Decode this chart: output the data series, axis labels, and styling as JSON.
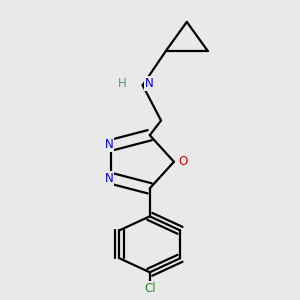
{
  "background_color": "#e9e9e9",
  "atom_colors": {
    "N": "#0000cc",
    "O": "#cc0000",
    "Cl": "#228B22",
    "C": "#000000",
    "H": "#4a9a8a"
  },
  "bond_color": "#000000",
  "figsize": [
    3.0,
    3.0
  ],
  "dpi": 100,
  "lw": 1.6,
  "dbo": 0.018
}
